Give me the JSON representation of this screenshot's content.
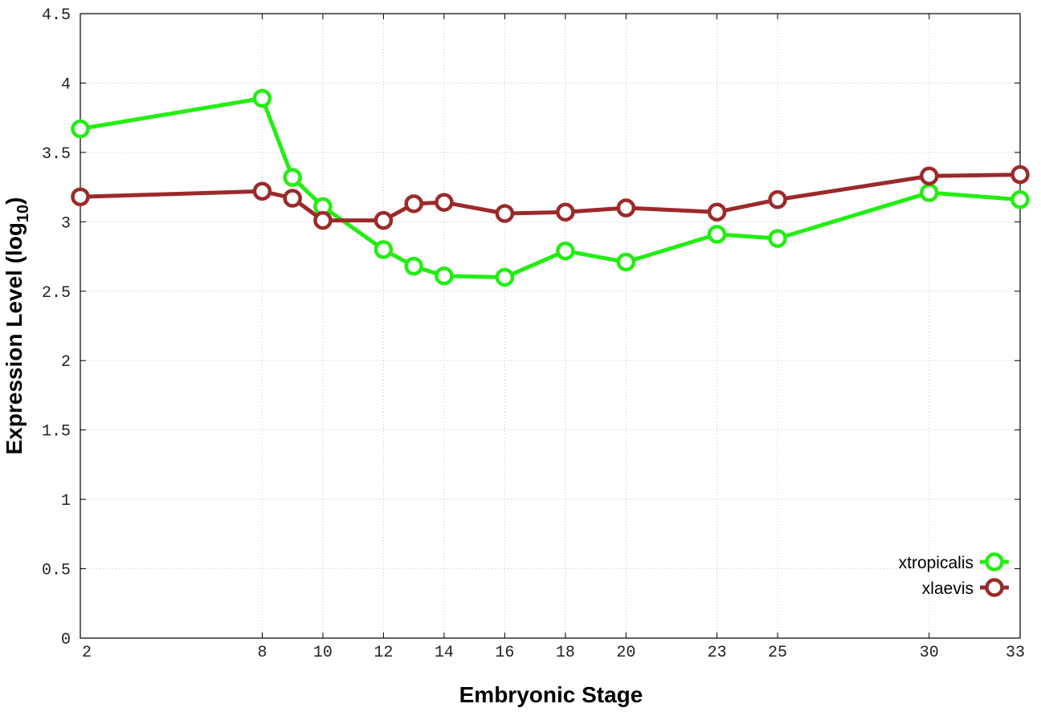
{
  "chart_data": {
    "type": "line",
    "xlabel": "Embryonic Stage",
    "ylabel": "Expression Level (log",
    "ylabel_sub": "10",
    "ylabel_close": ")",
    "xlim": [
      2,
      33
    ],
    "ylim": [
      0,
      4.5
    ],
    "x_categories": [
      "2",
      "8",
      "10",
      "12",
      "14",
      "16",
      "18",
      "20",
      "23",
      "25",
      "30",
      "33"
    ],
    "y_ticks": [
      "0",
      "0.5",
      "1",
      "1.5",
      "2",
      "2.5",
      "3",
      "3.5",
      "4",
      "4.5"
    ],
    "grid": true,
    "legend_placement": "bottom-right",
    "series": [
      {
        "name": "xtropicalis",
        "color": "#22ee11",
        "points": [
          {
            "x": 2,
            "y": 3.67
          },
          {
            "x": 8,
            "y": 3.89
          },
          {
            "x": 9,
            "y": 3.32
          },
          {
            "x": 10,
            "y": 3.11
          },
          {
            "x": 12,
            "y": 2.8
          },
          {
            "x": 13,
            "y": 2.68
          },
          {
            "x": 14,
            "y": 2.61
          },
          {
            "x": 16,
            "y": 2.6
          },
          {
            "x": 18,
            "y": 2.79
          },
          {
            "x": 20,
            "y": 2.71
          },
          {
            "x": 23,
            "y": 2.91
          },
          {
            "x": 25,
            "y": 2.88
          },
          {
            "x": 30,
            "y": 3.21
          },
          {
            "x": 33,
            "y": 3.16
          }
        ]
      },
      {
        "name": "xlaevis",
        "color": "#9b2a2a",
        "points": [
          {
            "x": 2,
            "y": 3.18
          },
          {
            "x": 8,
            "y": 3.22
          },
          {
            "x": 9,
            "y": 3.17
          },
          {
            "x": 10,
            "y": 3.01
          },
          {
            "x": 12,
            "y": 3.01
          },
          {
            "x": 13,
            "y": 3.13
          },
          {
            "x": 14,
            "y": 3.14
          },
          {
            "x": 16,
            "y": 3.06
          },
          {
            "x": 18,
            "y": 3.07
          },
          {
            "x": 20,
            "y": 3.1
          },
          {
            "x": 23,
            "y": 3.07
          },
          {
            "x": 25,
            "y": 3.16
          },
          {
            "x": 30,
            "y": 3.33
          },
          {
            "x": 33,
            "y": 3.34
          }
        ]
      }
    ]
  }
}
